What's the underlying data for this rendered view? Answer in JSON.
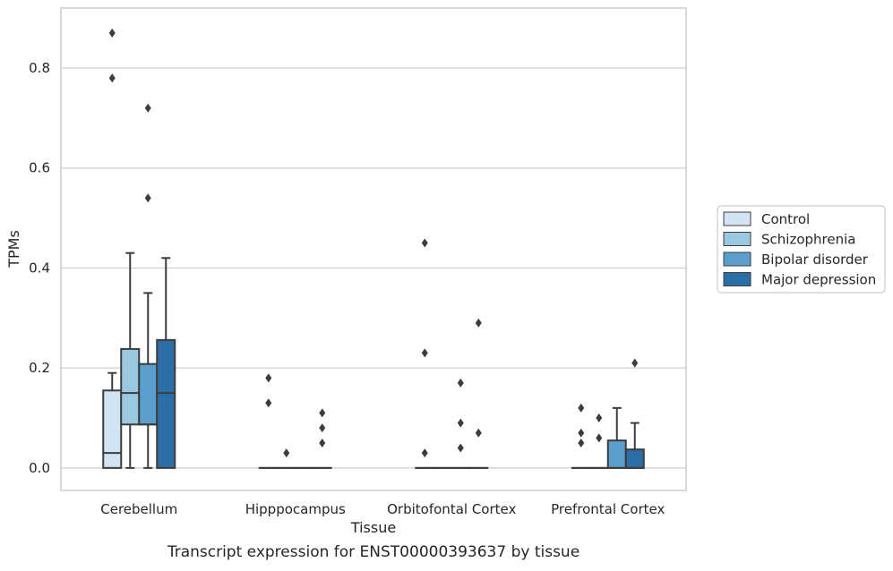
{
  "chart_data": {
    "type": "box",
    "ylabel": "TPMs",
    "xlabel": "Tissue",
    "caption": "Transcript expression for ENST00000393637 by tissue",
    "ylim": [
      -0.045,
      0.92
    ],
    "yticks": [
      0.0,
      0.2,
      0.4,
      0.6,
      0.8
    ],
    "ytick_labels": [
      "0.0",
      "0.2",
      "0.4",
      "0.6",
      "0.8"
    ],
    "grid": "horizontal",
    "legend_position": "right",
    "categories": [
      "Cerebellum",
      "Hipppocampus",
      "Orbitofontal Cortex",
      "Prefrontal Cortex"
    ],
    "series": [
      {
        "name": "Control",
        "color": "#d2e3f3",
        "boxes": [
          {
            "q1": 0.0,
            "median": 0.03,
            "q3": 0.155,
            "whislo": 0.0,
            "whishi": 0.19,
            "fliers": [
              0.87,
              0.78
            ]
          },
          {
            "q1": 0.0,
            "median": 0.0,
            "q3": 0.0,
            "whislo": 0.0,
            "whishi": 0.0,
            "fliers": [
              0.18,
              0.13
            ]
          },
          {
            "q1": 0.0,
            "median": 0.0,
            "q3": 0.0,
            "whislo": 0.0,
            "whishi": 0.0,
            "fliers": [
              0.45,
              0.23,
              0.03
            ]
          },
          {
            "q1": 0.0,
            "median": 0.0,
            "q3": 0.0,
            "whislo": 0.0,
            "whishi": 0.0,
            "fliers": [
              0.12,
              0.07,
              0.05
            ]
          }
        ]
      },
      {
        "name": "Schizophrenia",
        "color": "#9ac8e0",
        "boxes": [
          {
            "q1": 0.087,
            "median": 0.15,
            "q3": 0.238,
            "whislo": 0.0,
            "whishi": 0.43,
            "fliers": []
          },
          {
            "q1": 0.0,
            "median": 0.0,
            "q3": 0.0,
            "whislo": 0.0,
            "whishi": 0.0,
            "fliers": [
              0.03
            ]
          },
          {
            "q1": 0.0,
            "median": 0.0,
            "q3": 0.0,
            "whislo": 0.0,
            "whishi": 0.0,
            "fliers": []
          },
          {
            "q1": 0.0,
            "median": 0.0,
            "q3": 0.0,
            "whislo": 0.0,
            "whishi": 0.0,
            "fliers": [
              0.1,
              0.06
            ]
          }
        ]
      },
      {
        "name": "Bipolar disorder",
        "color": "#5a9fcd",
        "boxes": [
          {
            "q1": 0.087,
            "median": 0.087,
            "q3": 0.208,
            "whislo": 0.0,
            "whishi": 0.35,
            "fliers": [
              0.72,
              0.54
            ]
          },
          {
            "q1": 0.0,
            "median": 0.0,
            "q3": 0.0,
            "whislo": 0.0,
            "whishi": 0.0,
            "fliers": []
          },
          {
            "q1": 0.0,
            "median": 0.0,
            "q3": 0.0,
            "whislo": 0.0,
            "whishi": 0.0,
            "fliers": [
              0.17,
              0.09,
              0.04
            ]
          },
          {
            "q1": 0.0,
            "median": 0.0,
            "q3": 0.055,
            "whislo": 0.0,
            "whishi": 0.12,
            "fliers": []
          }
        ]
      },
      {
        "name": "Major depression",
        "color": "#2b6ea8",
        "boxes": [
          {
            "q1": 0.0,
            "median": 0.15,
            "q3": 0.256,
            "whislo": 0.0,
            "whishi": 0.42,
            "fliers": []
          },
          {
            "q1": 0.0,
            "median": 0.0,
            "q3": 0.0,
            "whislo": 0.0,
            "whishi": 0.0,
            "fliers": [
              0.11,
              0.08,
              0.05
            ]
          },
          {
            "q1": 0.0,
            "median": 0.0,
            "q3": 0.0,
            "whislo": 0.0,
            "whishi": 0.0,
            "fliers": [
              0.29,
              0.07
            ]
          },
          {
            "q1": 0.0,
            "median": 0.0,
            "q3": 0.037,
            "whislo": 0.0,
            "whishi": 0.09,
            "fliers": [
              0.21
            ]
          }
        ]
      }
    ]
  }
}
